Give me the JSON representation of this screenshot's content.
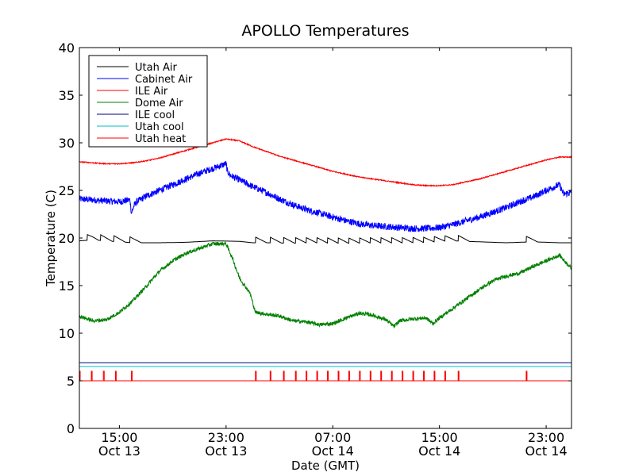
{
  "chart_data": {
    "type": "line",
    "title": "APOLLO Temperatures",
    "xlabel": "Date (GMT)",
    "ylabel": "Temperature (C)",
    "ylim": [
      0,
      40
    ],
    "xlim": [
      0,
      36.9
    ],
    "x_unit": "hours since 12:00 GMT Oct 13 (approx.)",
    "yticks": [
      0,
      5,
      10,
      15,
      20,
      25,
      30,
      35,
      40
    ],
    "xticks": [
      {
        "x": 3.0,
        "line1": "15:00",
        "line2": "Oct 13"
      },
      {
        "x": 11.0,
        "line1": "23:00",
        "line2": "Oct 13"
      },
      {
        "x": 19.0,
        "line1": "07:00",
        "line2": "Oct 14"
      },
      {
        "x": 27.0,
        "line1": "15:00",
        "line2": "Oct 14"
      },
      {
        "x": 35.0,
        "line1": "23:00",
        "line2": "Oct 14"
      }
    ],
    "legend_position": "top-left",
    "series": [
      {
        "name": "Utah Air",
        "color": "#000000",
        "points": [
          [
            0,
            19.7
          ],
          [
            1,
            19.8
          ],
          [
            2,
            19.7
          ],
          [
            3,
            19.6
          ],
          [
            4,
            19.5
          ],
          [
            6,
            19.5
          ],
          [
            8,
            19.55
          ],
          [
            10,
            19.7
          ],
          [
            12,
            19.65
          ],
          [
            13,
            19.5
          ],
          [
            14,
            19.5
          ],
          [
            16,
            19.45
          ],
          [
            18,
            19.45
          ],
          [
            20,
            19.4
          ],
          [
            22,
            19.45
          ],
          [
            24,
            19.45
          ],
          [
            26,
            19.5
          ],
          [
            28,
            19.7
          ],
          [
            30,
            19.6
          ],
          [
            32,
            19.5
          ],
          [
            34,
            19.6
          ],
          [
            36,
            19.5
          ],
          [
            36.9,
            19.5
          ]
        ],
        "spikes": [
          0.6,
          1.6,
          2.6,
          3.8,
          13.2,
          14.3,
          15.3,
          16.2,
          17.0,
          17.8,
          18.6,
          19.4,
          20.2,
          21.0,
          21.8,
          22.6,
          23.4,
          24.2,
          25.0,
          25.8,
          26.6,
          27.4,
          28.4,
          33.5
        ]
      },
      {
        "name": "Cabinet Air",
        "color": "#0000ff",
        "points": [
          [
            0,
            24.1
          ],
          [
            1,
            24.0
          ],
          [
            2,
            23.9
          ],
          [
            3,
            23.8
          ],
          [
            3.8,
            24.0
          ],
          [
            3.9,
            22.6
          ],
          [
            4.1,
            23.4
          ],
          [
            4.3,
            23.8
          ],
          [
            5,
            24.4
          ],
          [
            6,
            25.0
          ],
          [
            7,
            25.6
          ],
          [
            8,
            26.2
          ],
          [
            9,
            26.8
          ],
          [
            10,
            27.3
          ],
          [
            11,
            27.8
          ],
          [
            11.1,
            27.0
          ],
          [
            11.3,
            26.6
          ],
          [
            12,
            26.1
          ],
          [
            13,
            25.4
          ],
          [
            14,
            24.8
          ],
          [
            15,
            24.1
          ],
          [
            16,
            23.5
          ],
          [
            17,
            23.0
          ],
          [
            18,
            22.6
          ],
          [
            19,
            22.2
          ],
          [
            20,
            21.8
          ],
          [
            21,
            21.5
          ],
          [
            22,
            21.3
          ],
          [
            23,
            21.2
          ],
          [
            24,
            21.1
          ],
          [
            25,
            21.0
          ],
          [
            26,
            21.0
          ],
          [
            27,
            21.1
          ],
          [
            28,
            21.4
          ],
          [
            29,
            21.8
          ],
          [
            30,
            22.2
          ],
          [
            31,
            22.7
          ],
          [
            32,
            23.2
          ],
          [
            33,
            23.8
          ],
          [
            34,
            24.3
          ],
          [
            35,
            25.0
          ],
          [
            36,
            25.6
          ],
          [
            36.3,
            24.6
          ],
          [
            36.9,
            24.8
          ]
        ],
        "noise": 0.35
      },
      {
        "name": "ILE Air",
        "color": "#ff0000",
        "points": [
          [
            0,
            28.0
          ],
          [
            1,
            27.9
          ],
          [
            2,
            27.8
          ],
          [
            3,
            27.8
          ],
          [
            4,
            27.9
          ],
          [
            5,
            28.1
          ],
          [
            6,
            28.4
          ],
          [
            7,
            28.8
          ],
          [
            8,
            29.2
          ],
          [
            9,
            29.6
          ],
          [
            10,
            30.0
          ],
          [
            11,
            30.4
          ],
          [
            12,
            30.2
          ],
          [
            13,
            29.6
          ],
          [
            14,
            29.1
          ],
          [
            15,
            28.6
          ],
          [
            16,
            28.2
          ],
          [
            17,
            27.8
          ],
          [
            18,
            27.4
          ],
          [
            19,
            27.0
          ],
          [
            20,
            26.7
          ],
          [
            21,
            26.4
          ],
          [
            22,
            26.2
          ],
          [
            23,
            26.0
          ],
          [
            24,
            25.8
          ],
          [
            25,
            25.6
          ],
          [
            26,
            25.5
          ],
          [
            27,
            25.5
          ],
          [
            28,
            25.6
          ],
          [
            29,
            25.9
          ],
          [
            30,
            26.2
          ],
          [
            31,
            26.6
          ],
          [
            32,
            27.0
          ],
          [
            33,
            27.4
          ],
          [
            34,
            27.8
          ],
          [
            35,
            28.2
          ],
          [
            36,
            28.5
          ],
          [
            36.9,
            28.5
          ]
        ],
        "noise": 0.05
      },
      {
        "name": "Dome Air",
        "color": "#008000",
        "points": [
          [
            0,
            11.8
          ],
          [
            1,
            11.3
          ],
          [
            2,
            11.4
          ],
          [
            3,
            12.2
          ],
          [
            4,
            13.4
          ],
          [
            5,
            14.9
          ],
          [
            6,
            16.5
          ],
          [
            7,
            17.6
          ],
          [
            8,
            18.4
          ],
          [
            9,
            18.9
          ],
          [
            10,
            19.4
          ],
          [
            11,
            19.4
          ],
          [
            11.5,
            17.8
          ],
          [
            12,
            15.8
          ],
          [
            12.8,
            14.2
          ],
          [
            13.2,
            12.2
          ],
          [
            14,
            12.0
          ],
          [
            15,
            11.8
          ],
          [
            16,
            11.3
          ],
          [
            17,
            11.2
          ],
          [
            18,
            10.9
          ],
          [
            19,
            11.0
          ],
          [
            20,
            11.6
          ],
          [
            21,
            12.1
          ],
          [
            22,
            11.9
          ],
          [
            23,
            11.4
          ],
          [
            23.6,
            10.7
          ],
          [
            24,
            11.3
          ],
          [
            25,
            11.5
          ],
          [
            26,
            11.6
          ],
          [
            26.5,
            11.0
          ],
          [
            27,
            11.6
          ],
          [
            28,
            12.6
          ],
          [
            29,
            13.6
          ],
          [
            30,
            14.6
          ],
          [
            31,
            15.5
          ],
          [
            32,
            16.0
          ],
          [
            33,
            16.3
          ],
          [
            34,
            17.0
          ],
          [
            35,
            17.6
          ],
          [
            36,
            18.2
          ],
          [
            36.5,
            17.4
          ],
          [
            36.9,
            16.8
          ]
        ],
        "noise": 0.2
      },
      {
        "name": "ILE cool",
        "color": "#000080",
        "points": [
          [
            0,
            6.9
          ],
          [
            36.9,
            6.9
          ]
        ]
      },
      {
        "name": "Utah cool",
        "color": "#00bfbf",
        "points": [
          [
            0,
            6.5
          ],
          [
            36.9,
            6.5
          ]
        ]
      },
      {
        "name": "Utah heat",
        "color": "#ff0000",
        "baseline": 5.0,
        "pulse_level": 6.0,
        "pulses": [
          0.0,
          0.9,
          1.8,
          2.7,
          3.9,
          13.2,
          14.3,
          15.3,
          16.2,
          17.0,
          17.8,
          18.6,
          19.4,
          20.2,
          21.0,
          21.8,
          22.6,
          23.4,
          24.2,
          25.0,
          25.8,
          26.6,
          27.4,
          28.4,
          33.5
        ]
      }
    ]
  }
}
